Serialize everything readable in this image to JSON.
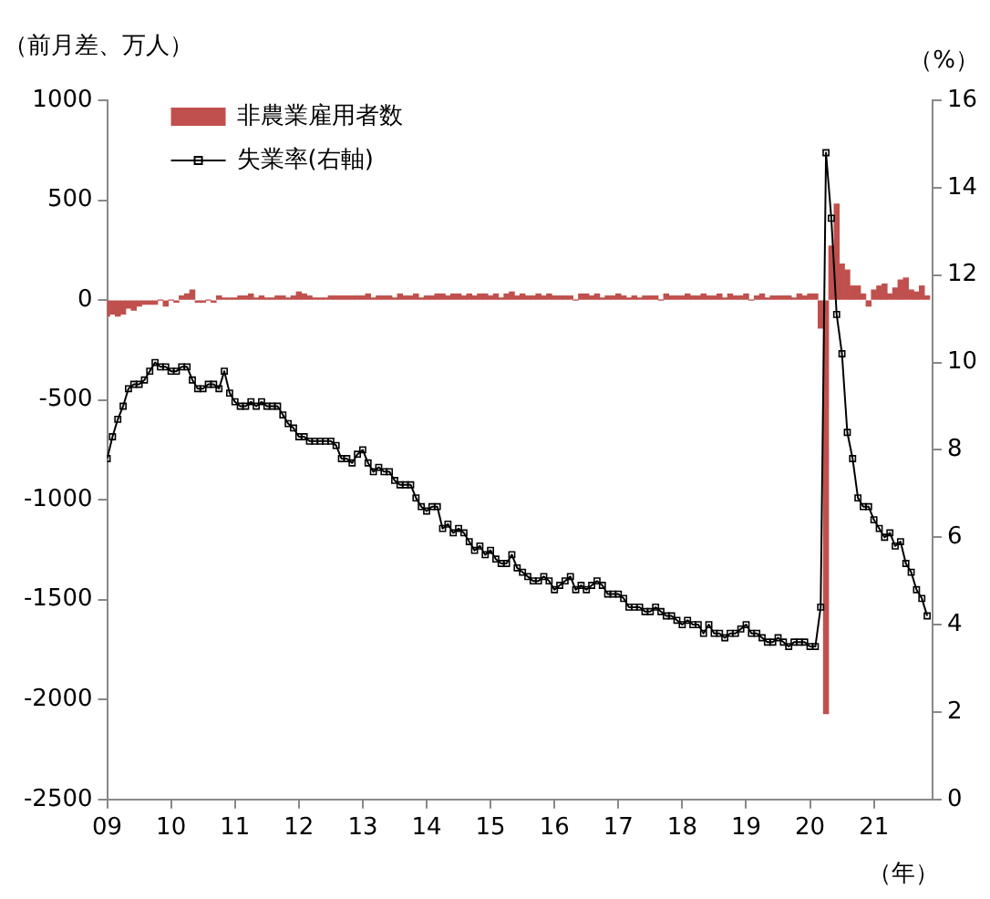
{
  "chart_data": {
    "type": "bar",
    "ylabel": "（前月差、万人）",
    "y2label": "（%）",
    "xlabel": "（年）",
    "x": [
      "2009-01",
      "2009-02",
      "2009-03",
      "2009-04",
      "2009-05",
      "2009-06",
      "2009-07",
      "2009-08",
      "2009-09",
      "2009-10",
      "2009-11",
      "2009-12",
      "2010-01",
      "2010-02",
      "2010-03",
      "2010-04",
      "2010-05",
      "2010-06",
      "2010-07",
      "2010-08",
      "2010-09",
      "2010-10",
      "2010-11",
      "2010-12",
      "2011-01",
      "2011-02",
      "2011-03",
      "2011-04",
      "2011-05",
      "2011-06",
      "2011-07",
      "2011-08",
      "2011-09",
      "2011-10",
      "2011-11",
      "2011-12",
      "2012-01",
      "2012-02",
      "2012-03",
      "2012-04",
      "2012-05",
      "2012-06",
      "2012-07",
      "2012-08",
      "2012-09",
      "2012-10",
      "2012-11",
      "2012-12",
      "2013-01",
      "2013-02",
      "2013-03",
      "2013-04",
      "2013-05",
      "2013-06",
      "2013-07",
      "2013-08",
      "2013-09",
      "2013-10",
      "2013-11",
      "2013-12",
      "2014-01",
      "2014-02",
      "2014-03",
      "2014-04",
      "2014-05",
      "2014-06",
      "2014-07",
      "2014-08",
      "2014-09",
      "2014-10",
      "2014-11",
      "2014-12",
      "2015-01",
      "2015-02",
      "2015-03",
      "2015-04",
      "2015-05",
      "2015-06",
      "2015-07",
      "2015-08",
      "2015-09",
      "2015-10",
      "2015-11",
      "2015-12",
      "2016-01",
      "2016-02",
      "2016-03",
      "2016-04",
      "2016-05",
      "2016-06",
      "2016-07",
      "2016-08",
      "2016-09",
      "2016-10",
      "2016-11",
      "2016-12",
      "2017-01",
      "2017-02",
      "2017-03",
      "2017-04",
      "2017-05",
      "2017-06",
      "2017-07",
      "2017-08",
      "2017-09",
      "2017-10",
      "2017-11",
      "2017-12",
      "2018-01",
      "2018-02",
      "2018-03",
      "2018-04",
      "2018-05",
      "2018-06",
      "2018-07",
      "2018-08",
      "2018-09",
      "2018-10",
      "2018-11",
      "2018-12",
      "2019-01",
      "2019-02",
      "2019-03",
      "2019-04",
      "2019-05",
      "2019-06",
      "2019-07",
      "2019-08",
      "2019-09",
      "2019-10",
      "2019-11",
      "2019-12",
      "2020-01",
      "2020-02",
      "2020-03",
      "2020-04",
      "2020-05",
      "2020-06",
      "2020-07",
      "2020-08",
      "2020-09",
      "2020-10",
      "2020-11",
      "2020-12",
      "2021-01",
      "2021-02",
      "2021-03",
      "2021-04",
      "2021-05",
      "2021-06",
      "2021-07",
      "2021-08",
      "2021-09",
      "2021-10",
      "2021-11"
    ],
    "series": [
      {
        "name": "非農業雇用者数",
        "color": "#c0504d",
        "values": [
          -80,
          -70,
          -80,
          -70,
          -40,
          -50,
          -30,
          -20,
          -20,
          -20,
          0,
          -30,
          0,
          -10,
          20,
          30,
          50,
          -10,
          -10,
          0,
          -10,
          20,
          10,
          10,
          10,
          20,
          20,
          30,
          10,
          20,
          10,
          10,
          20,
          20,
          10,
          20,
          40,
          30,
          20,
          10,
          10,
          10,
          20,
          20,
          20,
          20,
          20,
          20,
          20,
          30,
          10,
          20,
          20,
          20,
          10,
          30,
          20,
          20,
          30,
          10,
          20,
          20,
          30,
          30,
          20,
          30,
          30,
          20,
          30,
          20,
          30,
          30,
          20,
          30,
          10,
          30,
          40,
          20,
          30,
          20,
          20,
          30,
          20,
          30,
          20,
          20,
          20,
          20,
          0,
          30,
          30,
          20,
          30,
          10,
          20,
          20,
          30,
          20,
          10,
          20,
          10,
          20,
          20,
          20,
          0,
          30,
          20,
          20,
          20,
          30,
          20,
          20,
          30,
          20,
          20,
          30,
          10,
          30,
          20,
          20,
          30,
          0,
          20,
          30,
          10,
          20,
          20,
          20,
          20,
          10,
          30,
          20,
          30,
          30,
          -140,
          -2070,
          270,
          480,
          180,
          150,
          70,
          70,
          30,
          -30,
          50,
          70,
          80,
          30,
          60,
          100,
          110,
          50,
          40,
          70,
          20
        ]
      },
      {
        "name": "失業率(右軸)",
        "type": "line",
        "axis": "y2",
        "color": "#000000",
        "values": [
          7.8,
          8.3,
          8.7,
          9.0,
          9.4,
          9.5,
          9.5,
          9.6,
          9.8,
          10.0,
          9.9,
          9.9,
          9.8,
          9.8,
          9.9,
          9.9,
          9.6,
          9.4,
          9.4,
          9.5,
          9.5,
          9.4,
          9.8,
          9.3,
          9.1,
          9.0,
          9.0,
          9.1,
          9.0,
          9.1,
          9.0,
          9.0,
          9.0,
          8.8,
          8.6,
          8.5,
          8.3,
          8.3,
          8.2,
          8.2,
          8.2,
          8.2,
          8.2,
          8.1,
          7.8,
          7.8,
          7.7,
          7.9,
          8.0,
          7.7,
          7.5,
          7.6,
          7.5,
          7.5,
          7.3,
          7.2,
          7.2,
          7.2,
          6.9,
          6.7,
          6.6,
          6.7,
          6.7,
          6.2,
          6.3,
          6.1,
          6.2,
          6.1,
          5.9,
          5.7,
          5.8,
          5.6,
          5.7,
          5.5,
          5.4,
          5.4,
          5.6,
          5.3,
          5.2,
          5.1,
          5.0,
          5.0,
          5.1,
          5.0,
          4.8,
          4.9,
          5.0,
          5.1,
          4.8,
          4.9,
          4.8,
          4.9,
          5.0,
          4.9,
          4.7,
          4.7,
          4.7,
          4.6,
          4.4,
          4.4,
          4.4,
          4.3,
          4.3,
          4.4,
          4.3,
          4.2,
          4.2,
          4.1,
          4.0,
          4.1,
          4.0,
          4.0,
          3.8,
          4.0,
          3.8,
          3.8,
          3.7,
          3.8,
          3.8,
          3.9,
          4.0,
          3.8,
          3.8,
          3.7,
          3.6,
          3.6,
          3.7,
          3.6,
          3.5,
          3.6,
          3.6,
          3.6,
          3.5,
          3.5,
          4.4,
          14.8,
          13.3,
          11.1,
          10.2,
          8.4,
          7.8,
          6.9,
          6.7,
          6.7,
          6.4,
          6.2,
          6.0,
          6.1,
          5.8,
          5.9,
          5.4,
          5.2,
          4.8,
          4.6,
          4.2
        ]
      }
    ],
    "xlim": [
      "2009-01",
      "2021-12"
    ],
    "xticks": [
      {
        "value": "2009-01",
        "label": "09"
      },
      {
        "value": "2010-01",
        "label": "10"
      },
      {
        "value": "2011-01",
        "label": "11"
      },
      {
        "value": "2012-01",
        "label": "12"
      },
      {
        "value": "2013-01",
        "label": "13"
      },
      {
        "value": "2014-01",
        "label": "14"
      },
      {
        "value": "2015-01",
        "label": "15"
      },
      {
        "value": "2016-01",
        "label": "16"
      },
      {
        "value": "2017-01",
        "label": "17"
      },
      {
        "value": "2018-01",
        "label": "18"
      },
      {
        "value": "2019-01",
        "label": "19"
      },
      {
        "value": "2020-01",
        "label": "20"
      },
      {
        "value": "2021-01",
        "label": "21"
      }
    ],
    "ylim": [
      -2500,
      1000
    ],
    "yticks": [
      -2500,
      -2000,
      -1500,
      -1000,
      -500,
      0,
      500,
      1000
    ],
    "y2lim": [
      0,
      16
    ],
    "y2ticks": [
      0,
      2,
      4,
      6,
      8,
      10,
      12,
      14,
      16
    ],
    "grid": false,
    "legend": "top left",
    "marker": "square",
    "line_style": "solid"
  }
}
